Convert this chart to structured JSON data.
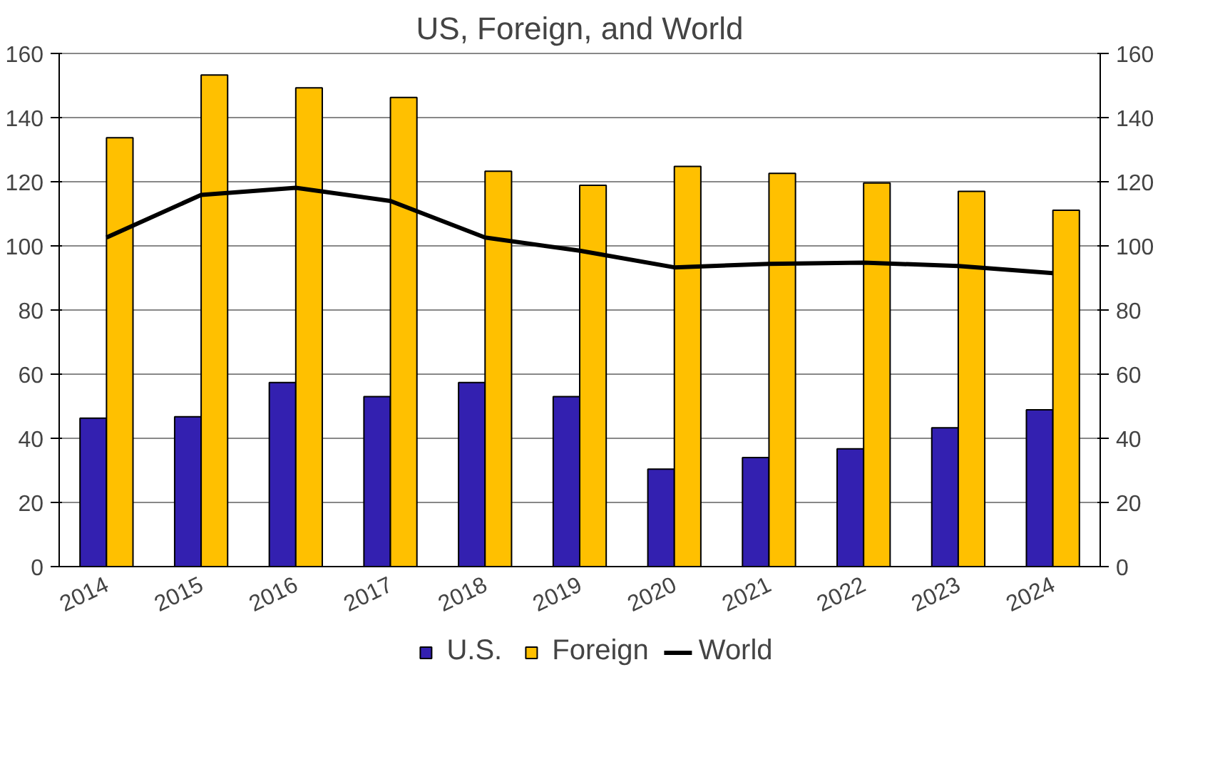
{
  "chart_data": {
    "type": "bar",
    "title": "US, Foreign, and World",
    "categories": [
      "2014",
      "2015",
      "2016",
      "2017",
      "2018",
      "2019",
      "2020",
      "2021",
      "2022",
      "2023",
      "2024"
    ],
    "series": [
      {
        "name": "U.S.",
        "color": "#3320b0",
        "values": [
          46.3,
          46.7,
          57.4,
          53,
          57.4,
          53,
          30.4,
          34,
          36.7,
          43.3,
          48.9
        ]
      },
      {
        "name": "Foreign",
        "color": "#ffc000",
        "values": [
          133.7,
          153.3,
          149.3,
          146.3,
          123.3,
          118.9,
          124.8,
          122.6,
          119.6,
          117,
          111.1
        ]
      },
      {
        "name": "World",
        "type": "line",
        "color": "#000000",
        "values": [
          102.6,
          115.9,
          118.1,
          114,
          102.6,
          98.5,
          93.3,
          94.4,
          94.8,
          93.7,
          91.5
        ]
      }
    ],
    "ylim": [
      0,
      160
    ],
    "yticks": [
      0,
      20,
      40,
      60,
      80,
      100,
      120,
      140,
      160
    ],
    "y2lim": [
      0,
      160
    ],
    "y2ticks": [
      0,
      20,
      40,
      60,
      80,
      100,
      120,
      140,
      160
    ],
    "grid": "y",
    "legend": "bottom"
  }
}
